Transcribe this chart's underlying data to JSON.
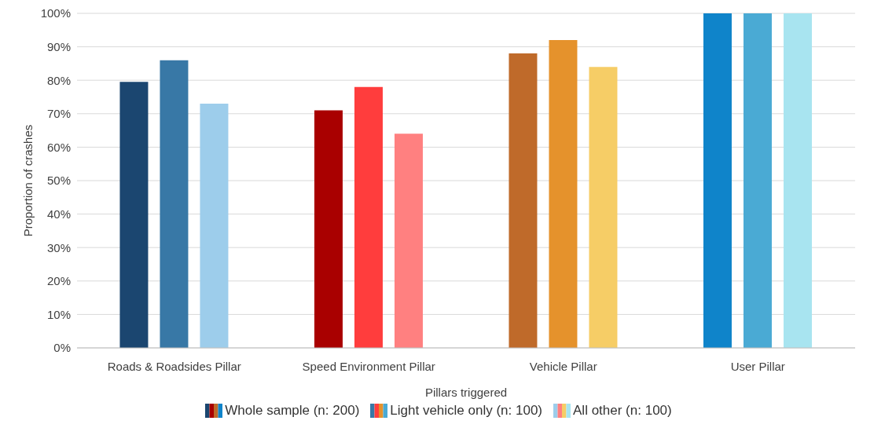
{
  "chart_data": {
    "type": "bar",
    "xlabel": "Pillars triggered",
    "ylabel": "Proportion of crashes",
    "categories": [
      "Roads & Roadsides Pillar",
      "Speed Environment Pillar",
      "Vehicle Pillar",
      "User Pillar"
    ],
    "series": [
      {
        "name": "Whole sample (n: 200)",
        "values": [
          79.5,
          71,
          88,
          100
        ],
        "colors": [
          "#1b4670",
          "#a90000",
          "#bf6a2a",
          "#0f84ca"
        ]
      },
      {
        "name": "Light vehicle only (n: 100)",
        "values": [
          86,
          78,
          92,
          100
        ],
        "colors": [
          "#3878a6",
          "#ff3d3d",
          "#e5922c",
          "#4aaad4"
        ]
      },
      {
        "name": "All other (n: 100)",
        "values": [
          73,
          64,
          84,
          100
        ],
        "colors": [
          "#9dcdeb",
          "#ff8080",
          "#f6cd66",
          "#a8e4f0"
        ]
      }
    ],
    "ylim": [
      0,
      100
    ],
    "yticks": [
      {
        "value": 0,
        "label": "0%"
      },
      {
        "value": 10,
        "label": "10%"
      },
      {
        "value": 20,
        "label": "20%"
      },
      {
        "value": 30,
        "label": "30%"
      },
      {
        "value": 40,
        "label": "40%"
      },
      {
        "value": 50,
        "label": "50%"
      },
      {
        "value": 60,
        "label": "60%"
      },
      {
        "value": 70,
        "label": "70%"
      },
      {
        "value": 80,
        "label": "80%"
      },
      {
        "value": 90,
        "label": "90%"
      },
      {
        "value": 100,
        "label": "100%"
      }
    ],
    "grid": "y",
    "legend": "bottom"
  }
}
